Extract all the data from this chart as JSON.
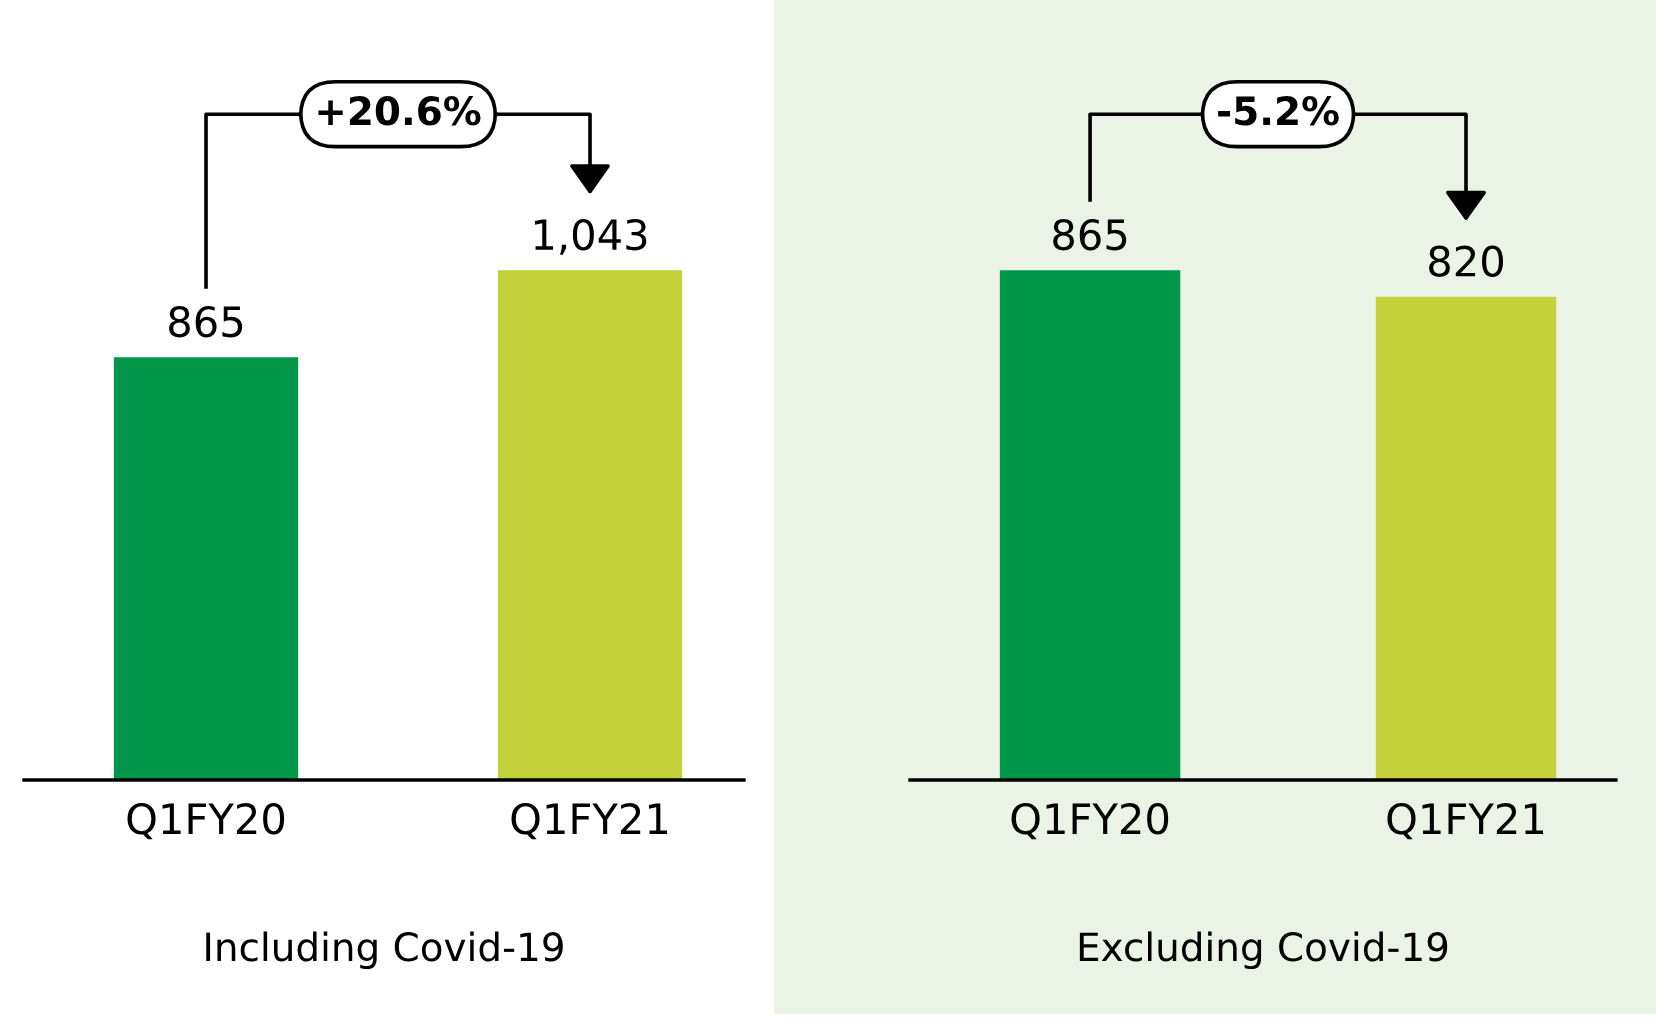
{
  "chart_data": [
    {
      "type": "bar",
      "categories": [
        "Q1FY20",
        "Q1FY21"
      ],
      "values": [
        865,
        1043
      ],
      "colors": [
        "#00964a",
        "#c3d13b"
      ],
      "value_labels": [
        "865",
        "1,043"
      ],
      "xlabel": "Including Covid-19",
      "annotations": [
        "+20.6%"
      ]
    },
    {
      "type": "bar",
      "categories": [
        "Q1FY20",
        "Q1FY21"
      ],
      "values": [
        865,
        820
      ],
      "colors": [
        "#00964a",
        "#c3d13b"
      ],
      "value_labels": [
        "865",
        "820"
      ],
      "xlabel": "Excluding Covid-19",
      "annotations": [
        "-5.2%"
      ]
    }
  ]
}
